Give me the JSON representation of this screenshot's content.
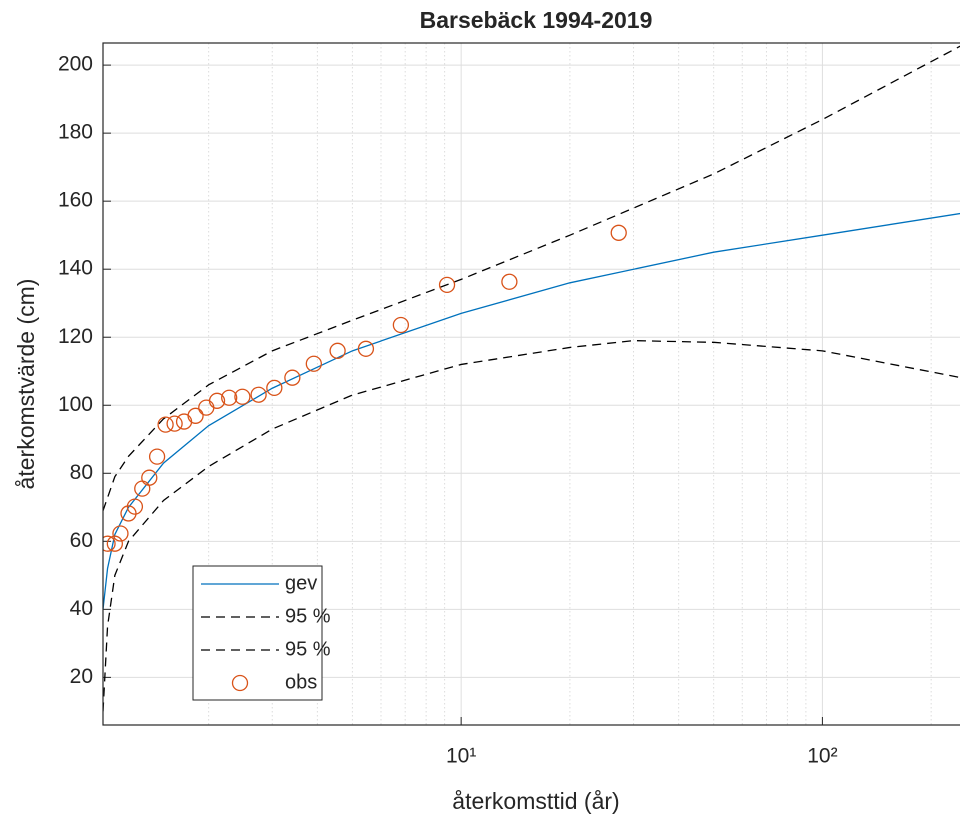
{
  "chart_data": {
    "type": "line",
    "title": "Barsebäck 1994-2019",
    "xlabel": "återkomsttid (år)",
    "ylabel": "återkomstvärde (cm)",
    "xscale": "log",
    "xlim": [
      1.02,
      245
    ],
    "ylim": [
      6,
      206.5
    ],
    "xticks": [
      {
        "value": 10,
        "label": "10¹"
      },
      {
        "value": 100,
        "label": "10²"
      }
    ],
    "xminorticks": [
      2,
      3,
      4,
      5,
      6,
      7,
      8,
      9,
      20,
      30,
      40,
      50,
      60,
      70,
      80,
      90,
      200
    ],
    "yticks": [
      20,
      40,
      60,
      80,
      100,
      120,
      140,
      160,
      180,
      200
    ],
    "grid": true,
    "legend": "lower left",
    "series": [
      {
        "name": "gev",
        "color": "#0072bd",
        "style": "solid",
        "x": [
          1.02,
          1.05,
          1.1,
          1.2,
          1.5,
          2,
          3,
          5,
          10,
          20,
          50,
          100,
          245
        ],
        "values": [
          40,
          52,
          62,
          70,
          83,
          94,
          105,
          116,
          127,
          136,
          145,
          150,
          156.5
        ]
      },
      {
        "name": "95 %",
        "color": "#000000",
        "style": "dashed",
        "x": [
          1.02,
          1.1,
          1.2,
          1.5,
          2,
          3,
          5,
          10,
          20,
          50,
          100,
          245
        ],
        "values": [
          69,
          79,
          85,
          96,
          106,
          116,
          125,
          137,
          150,
          168,
          184,
          206
        ]
      },
      {
        "name": "95 %",
        "color": "#000000",
        "style": "dashed",
        "x": [
          1.02,
          1.05,
          1.1,
          1.2,
          1.5,
          2,
          3,
          5,
          10,
          20,
          30,
          50,
          100,
          245
        ],
        "values": [
          10,
          35,
          50,
          60,
          72,
          82,
          93,
          103,
          112,
          117,
          119,
          118.5,
          116,
          108
        ]
      },
      {
        "name": "obs",
        "color": "#d95319",
        "style": "markers",
        "x": [
          1.05,
          1.1,
          1.14,
          1.2,
          1.25,
          1.31,
          1.37,
          1.44,
          1.52,
          1.61,
          1.71,
          1.84,
          1.97,
          2.11,
          2.28,
          2.48,
          2.75,
          3.04,
          3.41,
          3.91,
          4.55,
          5.45,
          6.81,
          9.14,
          13.6,
          27.3
        ],
        "values": [
          59.3,
          59.3,
          62.3,
          68.2,
          70.2,
          75.5,
          78.7,
          84.9,
          94.3,
          94.6,
          95.2,
          96.9,
          99.3,
          101.3,
          102.2,
          102.5,
          103.1,
          105.1,
          108.1,
          112.2,
          116.0,
          116.6,
          123.6,
          135.4,
          136.3,
          150.7
        ]
      }
    ]
  }
}
